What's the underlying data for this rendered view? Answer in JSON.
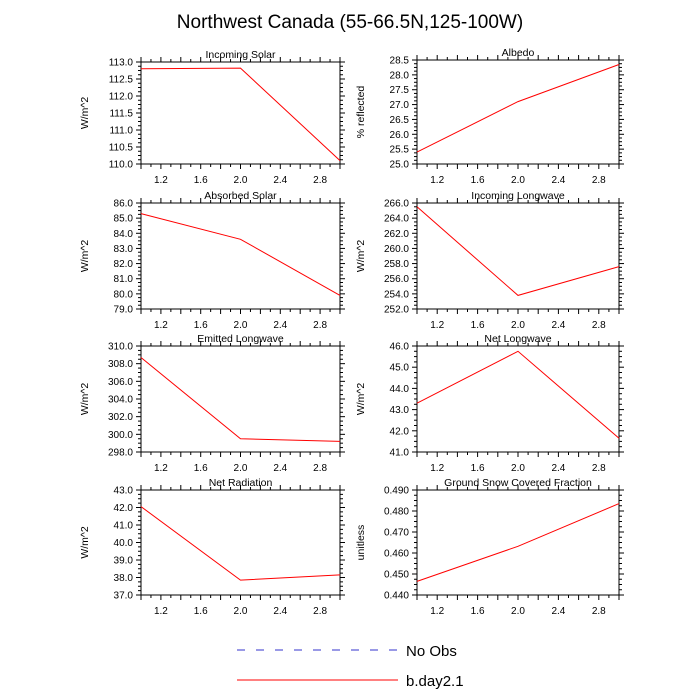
{
  "figure_title": "Northwest Canada (55-66.5N,125-100W)",
  "legend": [
    {
      "label": "No Obs",
      "color": "#3333cc",
      "dashed": true
    },
    {
      "label": "b.day2.1",
      "color": "#ff0000",
      "dashed": false
    }
  ],
  "chart_data": [
    {
      "type": "line",
      "title": "Incoming Solar",
      "ylabel": "W/m^2",
      "xlim": [
        1.0,
        3.0
      ],
      "ylim": [
        110.0,
        113.0
      ],
      "xticks": [
        1.2,
        1.6,
        2.0,
        2.4,
        2.8
      ],
      "xtick_labels": [
        "1.2",
        "1.6",
        "2.0",
        "2.4",
        "2.8"
      ],
      "yticks": [
        110.0,
        110.5,
        111.0,
        111.5,
        112.0,
        112.5,
        113.0
      ],
      "ytick_labels": [
        "110.0",
        "110.5",
        "111.0",
        "111.5",
        "112.0",
        "112.5",
        "113.0"
      ],
      "series": [
        {
          "name": "b.day2.1",
          "x": [
            1.0,
            2.0,
            3.0
          ],
          "y": [
            112.8,
            112.82,
            110.1
          ]
        }
      ]
    },
    {
      "type": "line",
      "title": "Albedo",
      "ylabel": "% reflected",
      "xlim": [
        1.0,
        3.0
      ],
      "ylim": [
        25.0,
        28.5
      ],
      "xticks": [
        1.2,
        1.6,
        2.0,
        2.4,
        2.8
      ],
      "xtick_labels": [
        "1.2",
        "1.6",
        "2.0",
        "2.4",
        "2.8"
      ],
      "yticks": [
        25.0,
        25.5,
        26.0,
        26.5,
        27.0,
        27.5,
        28.0,
        28.5
      ],
      "ytick_labels": [
        "25.0",
        "25.5",
        "26.0",
        "26.5",
        "27.0",
        "27.5",
        "28.0",
        "28.5"
      ],
      "series": [
        {
          "name": "b.day2.1",
          "x": [
            1.0,
            2.0,
            3.0
          ],
          "y": [
            25.4,
            27.1,
            28.35
          ]
        }
      ]
    },
    {
      "type": "line",
      "title": "Absorbed Solar",
      "ylabel": "W/m^2",
      "xlim": [
        1.0,
        3.0
      ],
      "ylim": [
        79.0,
        86.0
      ],
      "xticks": [
        1.2,
        1.6,
        2.0,
        2.4,
        2.8
      ],
      "xtick_labels": [
        "1.2",
        "1.6",
        "2.0",
        "2.4",
        "2.8"
      ],
      "yticks": [
        79.0,
        80.0,
        81.0,
        82.0,
        83.0,
        84.0,
        85.0,
        86.0
      ],
      "ytick_labels": [
        "79.0",
        "80.0",
        "81.0",
        "82.0",
        "83.0",
        "84.0",
        "85.0",
        "86.0"
      ],
      "series": [
        {
          "name": "b.day2.1",
          "x": [
            1.0,
            2.0,
            3.0
          ],
          "y": [
            85.3,
            83.6,
            79.9
          ]
        }
      ]
    },
    {
      "type": "line",
      "title": "Incoming Longwave",
      "ylabel": "W/m^2",
      "xlim": [
        1.0,
        3.0
      ],
      "ylim": [
        252.0,
        266.0
      ],
      "xticks": [
        1.2,
        1.6,
        2.0,
        2.4,
        2.8
      ],
      "xtick_labels": [
        "1.2",
        "1.6",
        "2.0",
        "2.4",
        "2.8"
      ],
      "yticks": [
        252.0,
        254.0,
        256.0,
        258.0,
        260.0,
        262.0,
        264.0,
        266.0
      ],
      "ytick_labels": [
        "252.0",
        "254.0",
        "256.0",
        "258.0",
        "260.0",
        "262.0",
        "264.0",
        "266.0"
      ],
      "series": [
        {
          "name": "b.day2.1",
          "x": [
            1.0,
            2.0,
            3.0
          ],
          "y": [
            265.5,
            253.8,
            257.6
          ]
        }
      ]
    },
    {
      "type": "line",
      "title": "Emitted Longwave",
      "ylabel": "W/m^2",
      "xlim": [
        1.0,
        3.0
      ],
      "ylim": [
        298.0,
        310.0
      ],
      "xticks": [
        1.2,
        1.6,
        2.0,
        2.4,
        2.8
      ],
      "xtick_labels": [
        "1.2",
        "1.6",
        "2.0",
        "2.4",
        "2.8"
      ],
      "yticks": [
        298.0,
        300.0,
        302.0,
        304.0,
        306.0,
        308.0,
        310.0
      ],
      "ytick_labels": [
        "298.0",
        "300.0",
        "302.0",
        "304.0",
        "306.0",
        "308.0",
        "310.0"
      ],
      "series": [
        {
          "name": "b.day2.1",
          "x": [
            1.0,
            2.0,
            3.0
          ],
          "y": [
            308.7,
            299.5,
            299.2
          ]
        }
      ]
    },
    {
      "type": "line",
      "title": "Net Longwave",
      "ylabel": "W/m^2",
      "xlim": [
        1.0,
        3.0
      ],
      "ylim": [
        41.0,
        46.0
      ],
      "xticks": [
        1.2,
        1.6,
        2.0,
        2.4,
        2.8
      ],
      "xtick_labels": [
        "1.2",
        "1.6",
        "2.0",
        "2.4",
        "2.8"
      ],
      "yticks": [
        41.0,
        42.0,
        43.0,
        44.0,
        45.0,
        46.0
      ],
      "ytick_labels": [
        "41.0",
        "42.0",
        "43.0",
        "44.0",
        "45.0",
        "46.0"
      ],
      "series": [
        {
          "name": "b.day2.1",
          "x": [
            1.0,
            2.0,
            3.0
          ],
          "y": [
            43.3,
            45.75,
            41.65
          ]
        }
      ]
    },
    {
      "type": "line",
      "title": "Net Radiation",
      "ylabel": "W/m^2",
      "xlim": [
        1.0,
        3.0
      ],
      "ylim": [
        37.0,
        43.0
      ],
      "xticks": [
        1.2,
        1.6,
        2.0,
        2.4,
        2.8
      ],
      "xtick_labels": [
        "1.2",
        "1.6",
        "2.0",
        "2.4",
        "2.8"
      ],
      "yticks": [
        37.0,
        38.0,
        39.0,
        40.0,
        41.0,
        42.0,
        43.0
      ],
      "ytick_labels": [
        "37.0",
        "38.0",
        "39.0",
        "40.0",
        "41.0",
        "42.0",
        "43.0"
      ],
      "series": [
        {
          "name": "b.day2.1",
          "x": [
            1.0,
            2.0,
            3.0
          ],
          "y": [
            42.05,
            37.85,
            38.15
          ]
        }
      ]
    },
    {
      "type": "line",
      "title": "Ground Snow Covered Fraction",
      "ylabel": "unitless",
      "xlim": [
        1.0,
        3.0
      ],
      "ylim": [
        0.44,
        0.49
      ],
      "xticks": [
        1.2,
        1.6,
        2.0,
        2.4,
        2.8
      ],
      "xtick_labels": [
        "1.2",
        "1.6",
        "2.0",
        "2.4",
        "2.8"
      ],
      "yticks": [
        0.44,
        0.45,
        0.46,
        0.47,
        0.48,
        0.49
      ],
      "ytick_labels": [
        "0.440",
        "0.450",
        "0.460",
        "0.470",
        "0.480",
        "0.490"
      ],
      "series": [
        {
          "name": "b.day2.1",
          "x": [
            1.0,
            2.0,
            3.0
          ],
          "y": [
            0.4465,
            0.4632,
            0.4835
          ]
        }
      ]
    }
  ]
}
